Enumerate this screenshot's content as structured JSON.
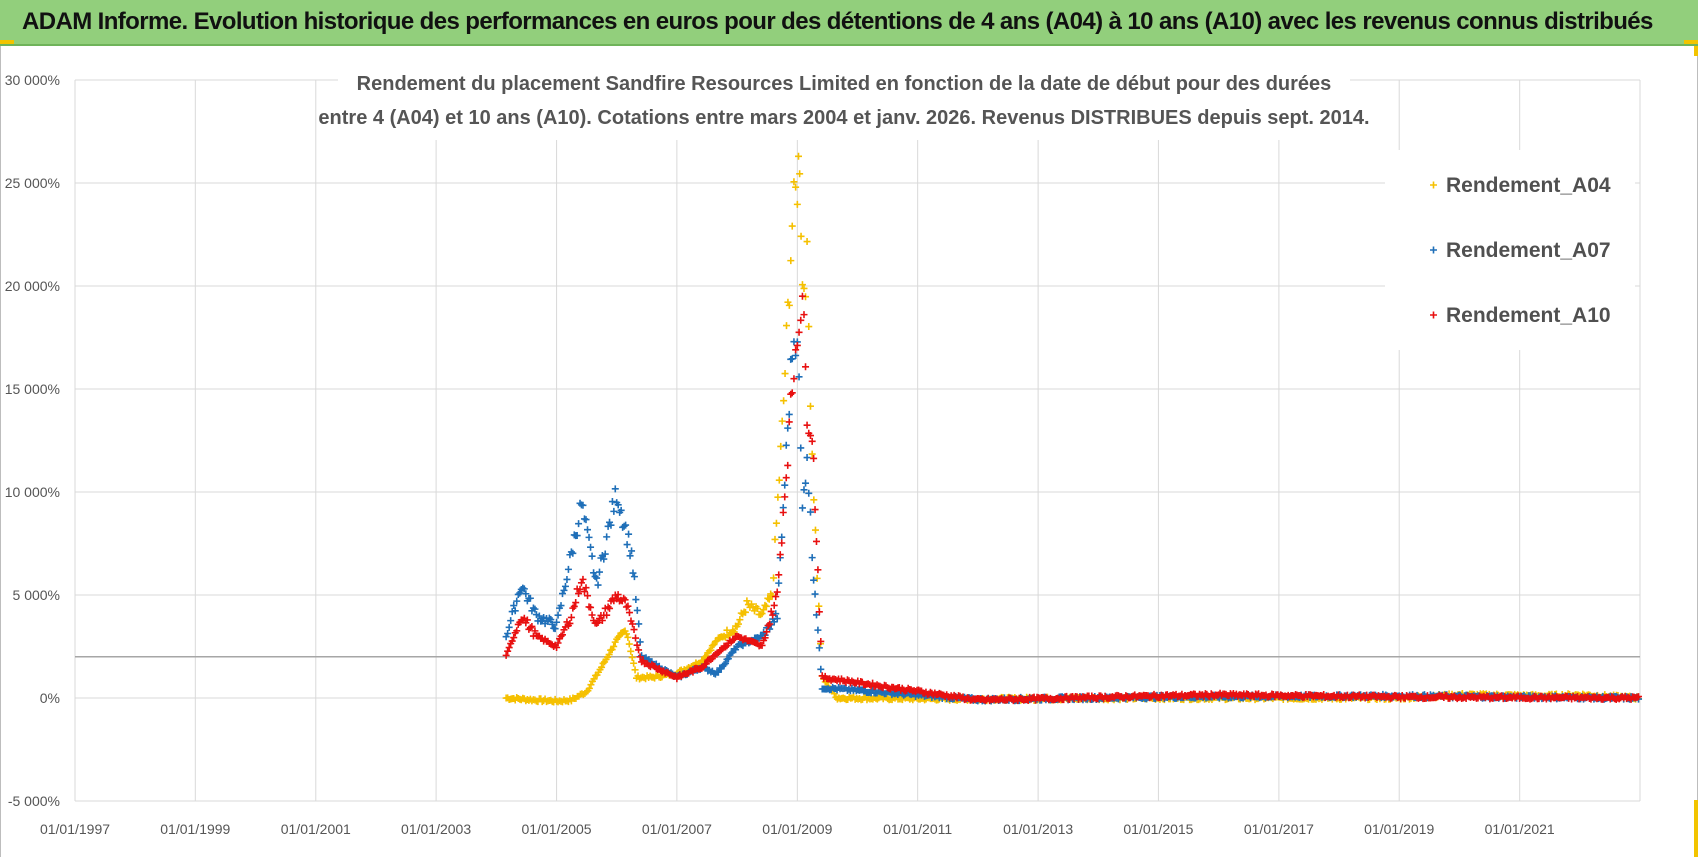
{
  "header": {
    "title": "ADAM Informe. Evolution historique des performances en euros pour des détentions de 4 ans (A04) à 10 ans (A10) avec les revenus connus distribués"
  },
  "colors": {
    "header_bg": "#92cf7c",
    "series_a04": "#f5c000",
    "series_a07": "#1f6fb8",
    "series_a10": "#e81010",
    "reference_line": "#a6a6a6"
  },
  "chart_data": {
    "type": "scatter",
    "title_lines": [
      "Rendement du placement Sandfire Resources Limited en fonction de la date de début pour des durées",
      "entre 4 (A04) et 10 ans (A10). Cotations entre mars 2004 et janv. 2026. Revenus DISTRIBUES depuis sept. 2014."
    ],
    "x_axis": {
      "type": "date",
      "range": [
        "1997-01-01",
        "2023-01-01"
      ],
      "tick_labels": [
        "01/01/1997",
        "01/01/1999",
        "01/01/2001",
        "01/01/2003",
        "01/01/2005",
        "01/01/2007",
        "01/01/2009",
        "01/01/2011",
        "01/01/2013",
        "01/01/2015",
        "01/01/2017",
        "01/01/2019",
        "01/01/2021"
      ]
    },
    "y_axis": {
      "unit": "%",
      "range": [
        -5000,
        30000
      ],
      "ticks": [
        -5000,
        0,
        5000,
        10000,
        15000,
        20000,
        25000,
        30000
      ],
      "tick_labels": [
        "-5 000%",
        "0%",
        "5 000%",
        "10 000%",
        "15 000%",
        "20 000%",
        "25 000%",
        "30 000%"
      ]
    },
    "reference_line_y": 2000,
    "grid": true,
    "legend_position": "top-right",
    "marker": "+",
    "series": [
      {
        "name": "Rendement_A04",
        "color": "#f5c000",
        "points": [
          [
            "2004-03-01",
            0
          ],
          [
            "2004-06-01",
            -50
          ],
          [
            "2004-09-01",
            -100
          ],
          [
            "2005-01-01",
            -150
          ],
          [
            "2005-04-01",
            -100
          ],
          [
            "2005-07-01",
            300
          ],
          [
            "2005-10-01",
            1500
          ],
          [
            "2006-01-01",
            2800
          ],
          [
            "2006-03-01",
            3300
          ],
          [
            "2006-05-01",
            1000
          ],
          [
            "2006-08-01",
            1000
          ],
          [
            "2007-01-01",
            1200
          ],
          [
            "2007-06-01",
            1800
          ],
          [
            "2007-09-01",
            2800
          ],
          [
            "2008-01-01",
            3500
          ],
          [
            "2008-03-01",
            4500
          ],
          [
            "2008-06-01",
            4000
          ],
          [
            "2008-08-01",
            5000
          ],
          [
            "2008-10-01",
            13000
          ],
          [
            "2008-12-01",
            23000
          ],
          [
            "2009-01-01",
            25000
          ],
          [
            "2009-01-15",
            26500
          ],
          [
            "2009-02-01",
            20000
          ],
          [
            "2009-03-01",
            21000
          ],
          [
            "2009-04-01",
            12000
          ],
          [
            "2009-05-01",
            6000
          ],
          [
            "2009-06-01",
            1000
          ],
          [
            "2009-09-01",
            0
          ],
          [
            "2012-01-01",
            -50
          ],
          [
            "2015-01-01",
            0
          ],
          [
            "2019-01-01",
            0
          ],
          [
            "2020-01-01",
            150
          ],
          [
            "2021-06-01",
            100
          ],
          [
            "2022-01-01",
            150
          ],
          [
            "2023-01-01",
            0
          ]
        ]
      },
      {
        "name": "Rendement_A07",
        "color": "#1f6fb8",
        "points": [
          [
            "2004-03-01",
            3000
          ],
          [
            "2004-06-01",
            5500
          ],
          [
            "2004-09-01",
            4000
          ],
          [
            "2005-01-01",
            3500
          ],
          [
            "2005-04-01",
            7000
          ],
          [
            "2005-06-01",
            9400
          ],
          [
            "2005-09-01",
            5500
          ],
          [
            "2006-01-01",
            10000
          ],
          [
            "2006-04-01",
            7000
          ],
          [
            "2006-06-01",
            2000
          ],
          [
            "2007-01-01",
            1000
          ],
          [
            "2007-06-01",
            1500
          ],
          [
            "2007-09-01",
            1200
          ],
          [
            "2008-01-01",
            2500
          ],
          [
            "2008-06-01",
            3000
          ],
          [
            "2008-09-01",
            4000
          ],
          [
            "2008-12-01",
            17000
          ],
          [
            "2009-01-01",
            18000
          ],
          [
            "2009-02-01",
            9000
          ],
          [
            "2009-03-01",
            12000
          ],
          [
            "2009-04-01",
            7000
          ],
          [
            "2009-06-01",
            500
          ],
          [
            "2012-01-01",
            -80
          ],
          [
            "2015-01-01",
            50
          ],
          [
            "2019-01-01",
            100
          ],
          [
            "2023-01-01",
            0
          ]
        ]
      },
      {
        "name": "Rendement_A10",
        "color": "#e81010",
        "points": [
          [
            "2004-03-01",
            2000
          ],
          [
            "2004-06-01",
            4000
          ],
          [
            "2004-09-01",
            3000
          ],
          [
            "2005-01-01",
            2500
          ],
          [
            "2005-04-01",
            4000
          ],
          [
            "2005-06-01",
            5800
          ],
          [
            "2005-09-01",
            3500
          ],
          [
            "2006-01-01",
            5000
          ],
          [
            "2006-03-01",
            4500
          ],
          [
            "2006-06-01",
            1800
          ],
          [
            "2007-01-01",
            1000
          ],
          [
            "2007-06-01",
            1500
          ],
          [
            "2007-09-01",
            2200
          ],
          [
            "2008-01-01",
            3000
          ],
          [
            "2008-06-01",
            2500
          ],
          [
            "2008-09-01",
            5000
          ],
          [
            "2008-12-01",
            15000
          ],
          [
            "2009-01-01",
            18000
          ],
          [
            "2009-02-01",
            19500
          ],
          [
            "2009-03-01",
            14000
          ],
          [
            "2009-04-01",
            13000
          ],
          [
            "2009-06-01",
            1000
          ],
          [
            "2012-01-01",
            -100
          ],
          [
            "2015-01-01",
            100
          ],
          [
            "2016-01-01",
            150
          ],
          [
            "2019-01-01",
            50
          ],
          [
            "2023-01-01",
            0
          ]
        ]
      }
    ]
  }
}
